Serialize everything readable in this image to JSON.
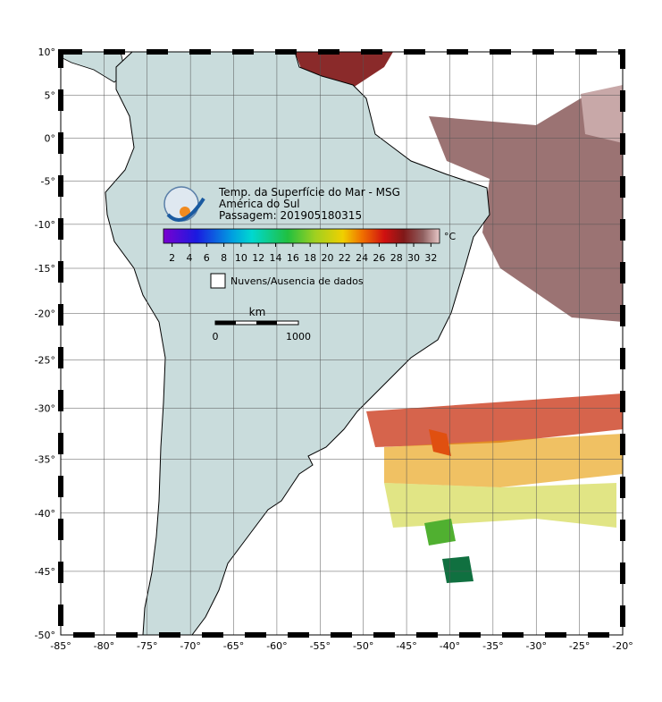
{
  "map": {
    "title": "Temp. da Superfície do Mar - MSG",
    "subtitle": "América do Sul",
    "pass": "Passagem: 201905180315",
    "lonlim": [
      -85,
      -20
    ],
    "latlim": [
      -50,
      10
    ],
    "lonticks": [
      {
        "value": -85,
        "label": "-85°"
      },
      {
        "value": -80,
        "label": "-80°"
      },
      {
        "value": -75,
        "label": "-75°"
      },
      {
        "value": -70,
        "label": "-70°"
      },
      {
        "value": -65,
        "label": "-65°"
      },
      {
        "value": -60,
        "label": "-60°"
      },
      {
        "value": -55,
        "label": "-55°"
      },
      {
        "value": -50,
        "label": "-50°"
      },
      {
        "value": -45,
        "label": "-45°"
      },
      {
        "value": -40,
        "label": "-40°"
      },
      {
        "value": -35,
        "label": "-35°"
      },
      {
        "value": -30,
        "label": "-30°"
      },
      {
        "value": -25,
        "label": "-25°"
      },
      {
        "value": -20,
        "label": "-20°"
      }
    ],
    "latticks": [
      {
        "value": 10,
        "label": "10°"
      },
      {
        "value": 5,
        "label": "5°"
      },
      {
        "value": 0,
        "label": "0°"
      },
      {
        "value": -5,
        "label": "-5°"
      },
      {
        "value": -10,
        "label": "-10°"
      },
      {
        "value": -15,
        "label": "-15°"
      },
      {
        "value": -20,
        "label": "-20°"
      },
      {
        "value": -25,
        "label": "-25°"
      },
      {
        "value": -30,
        "label": "-30°"
      },
      {
        "value": -35,
        "label": "-35°"
      },
      {
        "value": -40,
        "label": "-40°"
      },
      {
        "value": -45,
        "label": "-45°"
      },
      {
        "value": -50,
        "label": "-50°"
      }
    ],
    "colorbar": {
      "unit": "°C",
      "range": [
        1,
        33
      ],
      "ticks": [
        2,
        4,
        6,
        8,
        10,
        12,
        14,
        16,
        18,
        20,
        22,
        24,
        26,
        28,
        30,
        32
      ]
    },
    "legend": "Nuvens/Ausencia de dados",
    "scalebar": {
      "unit": "km",
      "start": "0",
      "end": "1000"
    }
  }
}
